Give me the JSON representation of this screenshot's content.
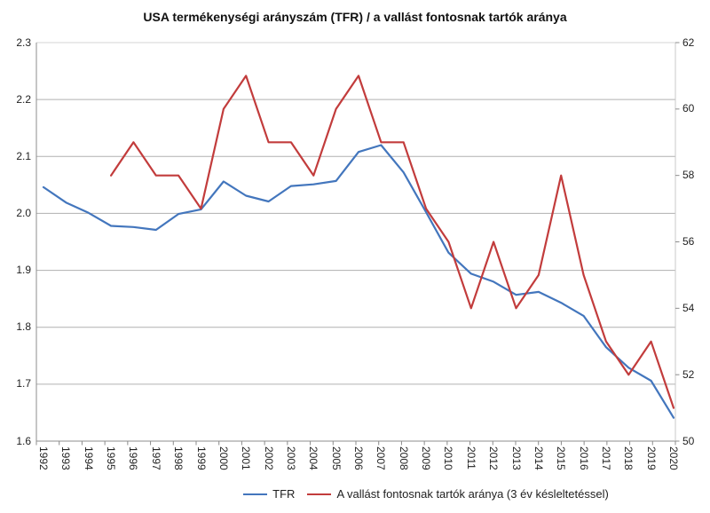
{
  "title": "USA termékenységi arányszám (TFR) / a vallást fontosnak tartók aránya",
  "chart_data": {
    "type": "line",
    "x": [
      "1992",
      "1993",
      "1994",
      "1995",
      "1996",
      "1997",
      "1998",
      "1999",
      "2000",
      "2001",
      "2002",
      "2003",
      "2004",
      "2005",
      "2006",
      "2007",
      "2008",
      "2009",
      "2010",
      "2011",
      "2012",
      "2013",
      "2014",
      "2015",
      "2016",
      "2017",
      "2018",
      "2019",
      "2020"
    ],
    "series": [
      {
        "name": "TFR",
        "axis": "left",
        "color": "#4376BD",
        "values": [
          2.046,
          2.019,
          2.001,
          1.978,
          1.976,
          1.971,
          1.999,
          2.007,
          2.056,
          2.031,
          2.021,
          2.048,
          2.051,
          2.057,
          2.108,
          2.12,
          2.072,
          2.002,
          1.931,
          1.894,
          1.88,
          1.857,
          1.862,
          1.843,
          1.82,
          1.765,
          1.729,
          1.706,
          1.641
        ]
      },
      {
        "name": "A vallást fontosnak tartók aránya (3 év késleltetéssel)",
        "axis": "right",
        "color": "#C23C3C",
        "values": [
          null,
          null,
          null,
          58,
          59,
          58,
          58,
          57,
          60,
          61,
          59,
          59,
          58,
          60,
          61,
          59,
          59,
          57,
          56,
          54,
          56,
          54,
          55,
          58,
          55,
          53,
          52,
          53,
          51
        ]
      }
    ],
    "axes": {
      "left": {
        "min": 1.6,
        "max": 2.3,
        "step": 0.1,
        "labels": [
          "2.3",
          "2.2",
          "2.1",
          "2.0",
          "1.9",
          "1.8",
          "1.7",
          "1.6"
        ]
      },
      "right": {
        "min": 50,
        "max": 62,
        "step": 2,
        "labels": [
          "62",
          "60",
          "58",
          "56",
          "54",
          "52",
          "50"
        ]
      }
    },
    "grid": true,
    "legend_position": "bottom"
  }
}
